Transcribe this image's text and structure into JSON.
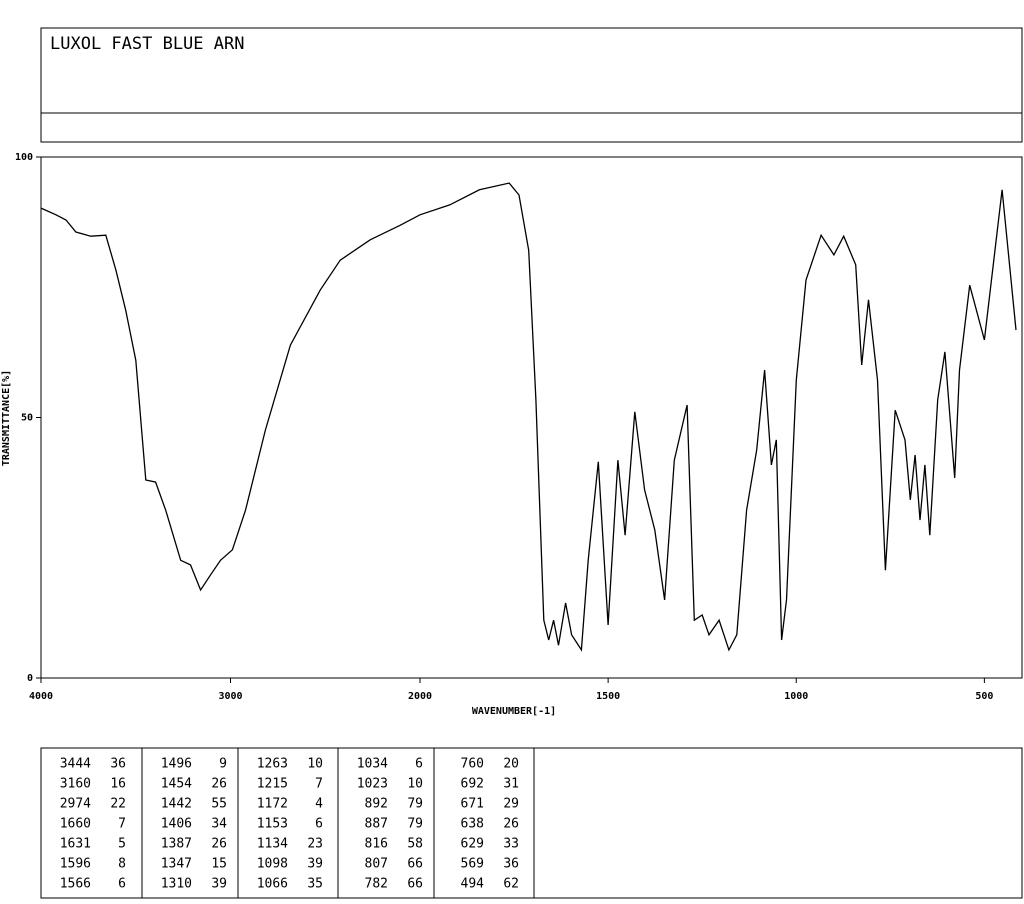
{
  "chart_data": {
    "type": "line",
    "title": "LUXOL FAST BLUE ARN",
    "xlabel": "WAVENUMBER[-1]",
    "ylabel": "TRANSMITTANCE[%]",
    "xlim": [
      4000,
      400
    ],
    "xbreak": 2000,
    "xticks": [
      4000,
      3000,
      2000,
      1500,
      1000,
      500
    ],
    "ylim": [
      0,
      100
    ],
    "yticks": [
      0,
      50,
      100
    ],
    "color": "#000000",
    "x": [
      4000,
      3921,
      3868,
      3816,
      3737,
      3658,
      3605,
      3553,
      3500,
      3447,
      3395,
      3342,
      3263,
      3211,
      3158,
      3105,
      3053,
      2990,
      2921,
      2816,
      2684,
      2526,
      2421,
      2263,
      2105,
      2000,
      1921,
      1842,
      1763,
      1737,
      1711,
      1692,
      1671,
      1658,
      1645,
      1632,
      1613,
      1597,
      1571,
      1553,
      1526,
      1500,
      1474,
      1455,
      1429,
      1403,
      1376,
      1350,
      1324,
      1290,
      1271,
      1250,
      1232,
      1205,
      1179,
      1158,
      1132,
      1105,
      1084,
      1066,
      1053,
      1039,
      1026,
      1000,
      974,
      934,
      900,
      874,
      842,
      826,
      808,
      784,
      763,
      737,
      711,
      697,
      684,
      671,
      658,
      645,
      624,
      605,
      579,
      566,
      539,
      500,
      453,
      416
    ],
    "values": [
      90.2,
      88.9,
      87.9,
      85.6,
      84.8,
      85,
      78.3,
      70.6,
      61,
      38,
      37.6,
      32.2,
      22.6,
      21.7,
      16.9,
      19.8,
      22.6,
      24.6,
      32.2,
      47.6,
      63.9,
      74.5,
      80.2,
      84.1,
      86.9,
      88.9,
      90.8,
      93.7,
      95,
      92.7,
      82.1,
      53.4,
      11.1,
      7.3,
      11.1,
      6.3,
      14.4,
      8.3,
      5.4,
      22.6,
      41.5,
      10.2,
      41.8,
      27.4,
      51.1,
      36.1,
      28.4,
      15,
      41.8,
      52.4,
      11.1,
      12.1,
      8.3,
      11.1,
      5.4,
      8.3,
      32.2,
      43.8,
      59.1,
      40.9,
      45.7,
      7.3,
      15,
      57.2,
      76.4,
      85,
      81.2,
      84.8,
      79.3,
      60.1,
      72.6,
      57.2,
      20.7,
      51.4,
      45.7,
      34.2,
      42.8,
      30.3,
      40.9,
      27.4,
      53.4,
      62.6,
      38.4,
      59.1,
      75.4,
      64.9,
      93.7,
      66.8
    ]
  },
  "peak_table": [
    [
      [
        3444,
        36
      ],
      [
        3160,
        16
      ],
      [
        2974,
        22
      ],
      [
        1660,
        7
      ],
      [
        1631,
        5
      ],
      [
        1596,
        8
      ],
      [
        1566,
        6
      ]
    ],
    [
      [
        1496,
        9
      ],
      [
        1454,
        26
      ],
      [
        1442,
        55
      ],
      [
        1406,
        34
      ],
      [
        1387,
        26
      ],
      [
        1347,
        15
      ],
      [
        1310,
        39
      ]
    ],
    [
      [
        1263,
        10
      ],
      [
        1215,
        7
      ],
      [
        1172,
        4
      ],
      [
        1153,
        6
      ],
      [
        1134,
        23
      ],
      [
        1098,
        39
      ],
      [
        1066,
        35
      ]
    ],
    [
      [
        1034,
        6
      ],
      [
        1023,
        10
      ],
      [
        892,
        79
      ],
      [
        887,
        79
      ],
      [
        816,
        58
      ],
      [
        807,
        66
      ],
      [
        782,
        66
      ]
    ],
    [
      [
        760,
        20
      ],
      [
        692,
        31
      ],
      [
        671,
        29
      ],
      [
        638,
        26
      ],
      [
        629,
        33
      ],
      [
        569,
        36
      ],
      [
        494,
        62
      ]
    ]
  ]
}
